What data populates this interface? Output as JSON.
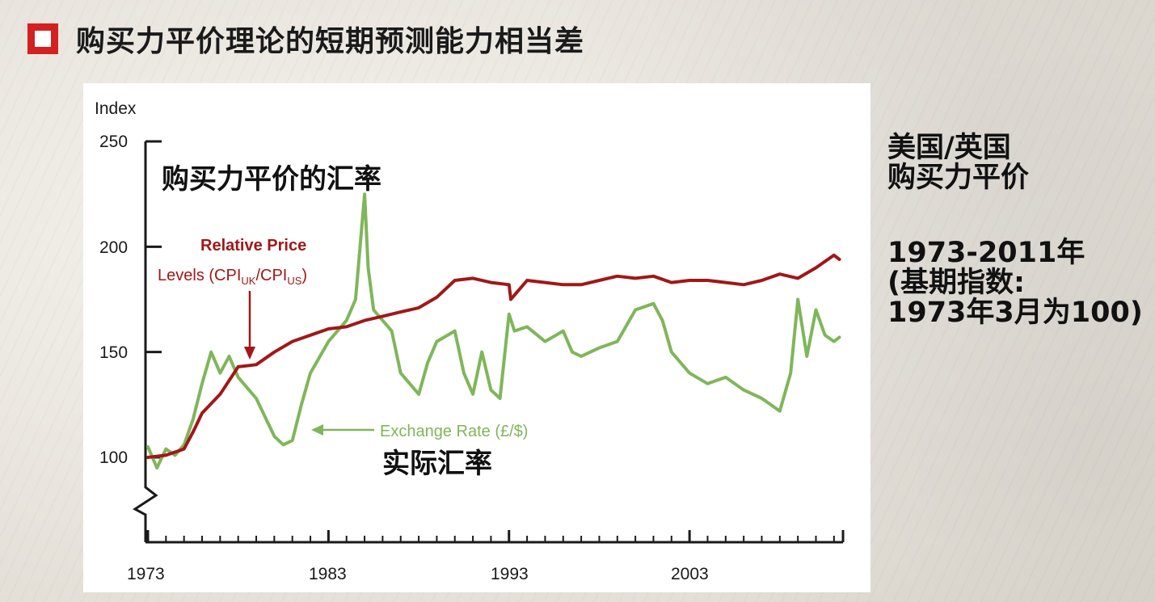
{
  "title": "购买力平价理论的短期预测能力相当差",
  "side_note": {
    "line1": "美国/英国",
    "line2": "购买力平价",
    "line3": "1973-2011年",
    "line4": "(基期指数:",
    "line5": "1973年3月为100)"
  },
  "annotations": {
    "ppp_rate_cn": "购买力平价的汇率",
    "actual_rate_cn": "实际汇率"
  },
  "colors": {
    "title_bullet": "#d42020",
    "relative_price": "#a01818",
    "exchange_rate": "#7fb65a",
    "axis": "#1a1a1a"
  },
  "chart_data": {
    "type": "line",
    "title": "",
    "xlabel": "",
    "ylabel": "Index",
    "ylim": [
      100,
      250
    ],
    "yticks": [
      100,
      150,
      200,
      250
    ],
    "xlim": [
      1973,
      2011.5
    ],
    "xtick_labels": [
      "1973",
      "1983",
      "1993",
      "2003"
    ],
    "axis_break": true,
    "series": [
      {
        "name": "Relative Price Levels (CPI_UK/CPI_US)",
        "label_line1": "Relative Price",
        "label_line2_prefix": "Levels (CPI",
        "label_sub1": "UK",
        "label_mid": "/CPI",
        "label_sub2": "US",
        "label_end": ")",
        "color": "#a01818",
        "x": [
          1973,
          1974,
          1975,
          1975.5,
          1976,
          1977,
          1978,
          1979,
          1980,
          1981,
          1982,
          1983,
          1984,
          1985,
          1986,
          1987,
          1988,
          1989,
          1990,
          1991,
          1992,
          1993,
          1993.1,
          1994,
          1995,
          1996,
          1997,
          1998,
          1999,
          2000,
          2001,
          2002,
          2003,
          2004,
          2005,
          2006,
          2007,
          2008,
          2009,
          2010,
          2011,
          2011.3
        ],
        "y": [
          100,
          101,
          104,
          112,
          121,
          130,
          143,
          144,
          150,
          155,
          158,
          161,
          162,
          165,
          167,
          169,
          171,
          176,
          184,
          185,
          183,
          182,
          175,
          184,
          183,
          182,
          182,
          184,
          186,
          185,
          186,
          183,
          184,
          184,
          183,
          182,
          184,
          187,
          185,
          190,
          196,
          194
        ]
      },
      {
        "name": "Exchange Rate (£/$)",
        "label": "Exchange Rate (£/$)",
        "color": "#7fb65a",
        "x": [
          1973,
          1973.5,
          1974,
          1974.5,
          1975,
          1975.5,
          1976,
          1976.5,
          1977,
          1977.5,
          1978,
          1979,
          1980,
          1980.5,
          1981,
          1981.5,
          1982,
          1983,
          1984,
          1984.5,
          1985,
          1985.2,
          1985.5,
          1986,
          1986.5,
          1987,
          1988,
          1988.5,
          1989,
          1990,
          1990.5,
          1991,
          1991.5,
          1992,
          1992.5,
          1993,
          1993.3,
          1994,
          1995,
          1996,
          1996.5,
          1997,
          1998,
          1999,
          2000,
          2001,
          2001.5,
          2002,
          2003,
          2004,
          2005,
          2006,
          2007,
          2008,
          2008.6,
          2009,
          2009.5,
          2010,
          2010.5,
          2011,
          2011.3
        ],
        "y": [
          105,
          95,
          104,
          101,
          106,
          118,
          135,
          150,
          140,
          148,
          138,
          128,
          110,
          106,
          108,
          125,
          140,
          155,
          165,
          175,
          225,
          190,
          170,
          165,
          160,
          140,
          130,
          145,
          155,
          160,
          140,
          130,
          150,
          132,
          128,
          168,
          160,
          162,
          155,
          160,
          150,
          148,
          152,
          155,
          170,
          173,
          165,
          150,
          140,
          135,
          138,
          132,
          128,
          122,
          140,
          175,
          148,
          170,
          158,
          155,
          157
        ]
      }
    ]
  }
}
